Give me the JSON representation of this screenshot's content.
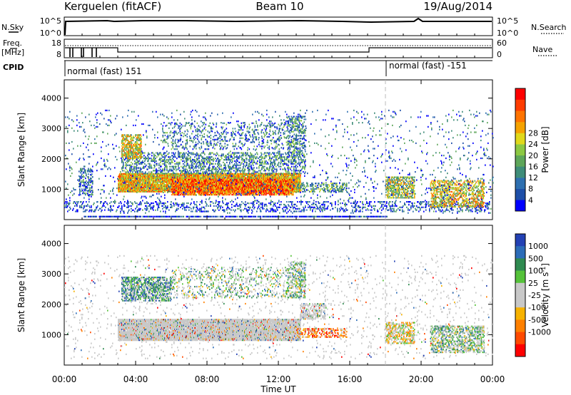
{
  "header": {
    "station": "Kerguelen (fitACF)",
    "beam": "Beam 10",
    "date": "19/Aug/2014"
  },
  "nsky_panel": {
    "left_label": "N.Sky",
    "right_label": "N.Search",
    "left_ticks": [
      "10^5",
      "10^0"
    ],
    "right_ticks": [
      "10^5",
      "10^0"
    ]
  },
  "freq_panel": {
    "left_label_1": "Freq.",
    "left_label_2": "[MHz]",
    "right_label": "Nave",
    "left_ticks": [
      "18",
      "8"
    ],
    "right_ticks": [
      "60",
      "0"
    ]
  },
  "cpid_panel": {
    "label": "CPID",
    "segments": [
      {
        "start_hour": 0,
        "text": "normal (fast) 151"
      },
      {
        "start_hour": 18,
        "text": "normal (fast) -151"
      }
    ]
  },
  "chart_data": [
    {
      "type": "heatmap",
      "name": "Power",
      "x_hours": [
        0,
        24
      ],
      "xticks": [
        "00:00",
        "04:00",
        "08:00",
        "12:00",
        "16:00",
        "20:00",
        "00:00"
      ],
      "ylabel": "Slant Range [km]",
      "ylim": [
        0,
        4600
      ],
      "yticks": [
        1000,
        2000,
        3000,
        4000
      ],
      "colorbar": {
        "label": "Power [dB]",
        "ticks": [
          "4",
          "8",
          "12",
          "16",
          "20",
          "24",
          "28"
        ],
        "colors": [
          "#0000ff",
          "#1e4fa8",
          "#2e6fb0",
          "#3f8d79",
          "#5ea65a",
          "#8cc842",
          "#e0d81a",
          "#f5a200",
          "#ff7300",
          "#ff3c00",
          "#ff0000"
        ]
      },
      "regions": [
        {
          "t": [
            1.1,
            18.1
          ],
          "r": [
            80,
            120
          ],
          "level": 0.1,
          "density": 0.8
        },
        {
          "t": [
            0.0,
            23.8
          ],
          "r": [
            250,
            600
          ],
          "level": 0.15,
          "density": 0.2
        },
        {
          "t": [
            3.0,
            13.2
          ],
          "r": [
            900,
            1500
          ],
          "level": 0.65,
          "density": 0.9
        },
        {
          "t": [
            6.0,
            12.8
          ],
          "r": [
            800,
            1300
          ],
          "level": 0.8,
          "density": 0.75
        },
        {
          "t": [
            3.2,
            13.5
          ],
          "r": [
            1500,
            2200
          ],
          "level": 0.3,
          "density": 0.3
        },
        {
          "t": [
            3.2,
            4.3
          ],
          "r": [
            2000,
            2800
          ],
          "level": 0.6,
          "density": 0.6
        },
        {
          "t": [
            5.5,
            12.5
          ],
          "r": [
            2300,
            3200
          ],
          "level": 0.25,
          "density": 0.15
        },
        {
          "t": [
            12.5,
            13.5
          ],
          "r": [
            2200,
            3400
          ],
          "level": 0.3,
          "density": 0.35
        },
        {
          "t": [
            0.8,
            1.6
          ],
          "r": [
            800,
            1700
          ],
          "level": 0.25,
          "density": 0.35
        },
        {
          "t": [
            13.0,
            15.8
          ],
          "r": [
            900,
            1200
          ],
          "level": 0.35,
          "density": 0.35
        },
        {
          "t": [
            18.0,
            19.6
          ],
          "r": [
            700,
            1400
          ],
          "level": 0.5,
          "density": 0.5
        },
        {
          "t": [
            20.5,
            23.5
          ],
          "r": [
            400,
            1300
          ],
          "level": 0.6,
          "density": 0.45
        },
        {
          "t": [
            0.0,
            24.0
          ],
          "r": [
            200,
            3600
          ],
          "level": 0.2,
          "density": 0.03
        }
      ]
    },
    {
      "type": "heatmap",
      "name": "Velocity",
      "x_hours": [
        0,
        24
      ],
      "xticks": [
        "00:00",
        "04:00",
        "08:00",
        "12:00",
        "16:00",
        "20:00",
        "00:00"
      ],
      "xlabel": "Time UT",
      "ylabel": "Slant Range [km]",
      "ylim": [
        0,
        4600
      ],
      "yticks": [
        1000,
        2000,
        3000,
        4000
      ],
      "colorbar": {
        "label": "Velocity [m s^-1]",
        "ticks": [
          "1000",
          "500",
          "100",
          "25",
          "-25",
          "-100",
          "-500",
          "-1000"
        ],
        "colors": [
          "#2341b4",
          "#2c6cb8",
          "#2f8a50",
          "#55c23a",
          "#c8c8c8",
          "#c8c8c8",
          "#f7b200",
          "#ff8000",
          "#ff4a00",
          "#ff0000"
        ]
      },
      "regions": [
        {
          "t": [
            3.0,
            13.2
          ],
          "r": [
            800,
            1500
          ],
          "level": 0.5,
          "density": 0.92
        },
        {
          "t": [
            13.2,
            14.6
          ],
          "r": [
            1500,
            2000
          ],
          "level": 0.5,
          "density": 0.5
        },
        {
          "t": [
            3.2,
            6.0
          ],
          "r": [
            2100,
            2900
          ],
          "level": 0.7,
          "density": 0.55
        },
        {
          "t": [
            6.0,
            12.5
          ],
          "r": [
            2200,
            3200
          ],
          "level": 0.6,
          "density": 0.15
        },
        {
          "t": [
            12.5,
            13.5
          ],
          "r": [
            2200,
            3400
          ],
          "level": 0.6,
          "density": 0.35
        },
        {
          "t": [
            13.0,
            15.8
          ],
          "r": [
            900,
            1200
          ],
          "level": 0.25,
          "density": 0.35
        },
        {
          "t": [
            18.0,
            19.6
          ],
          "r": [
            700,
            1400
          ],
          "level": 0.45,
          "density": 0.5
        },
        {
          "t": [
            20.5,
            23.5
          ],
          "r": [
            400,
            1300
          ],
          "level": 0.6,
          "density": 0.45
        },
        {
          "t": [
            0.0,
            24.0
          ],
          "r": [
            200,
            3600
          ],
          "level": 0.5,
          "density": 0.03
        }
      ]
    }
  ]
}
